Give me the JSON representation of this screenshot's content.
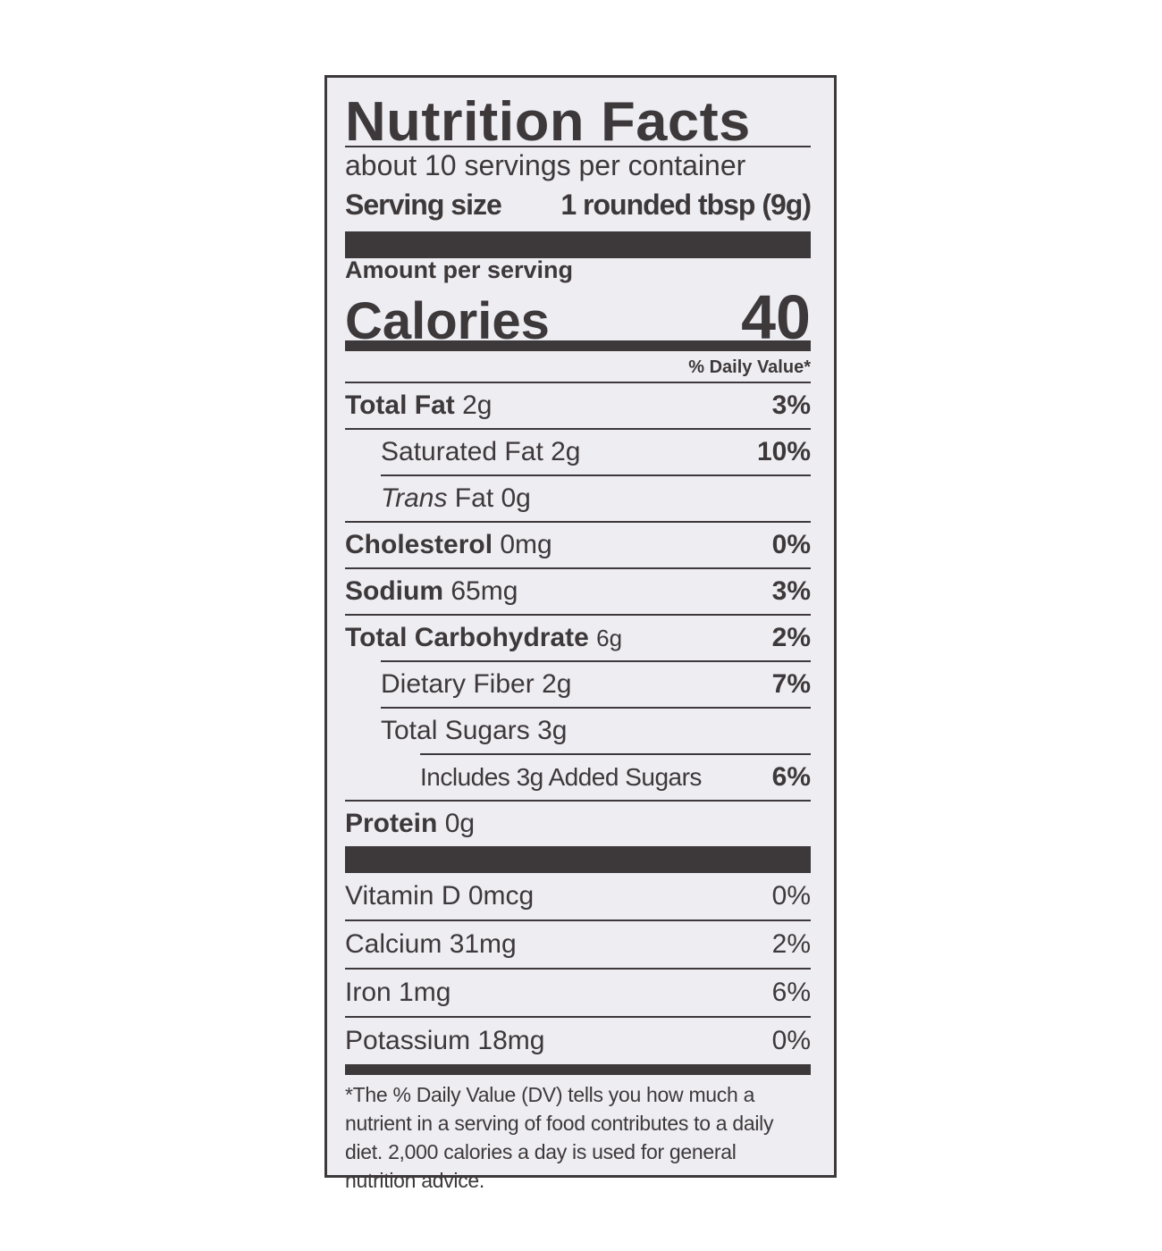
{
  "title": "Nutrition Facts",
  "servings_per_container": "about 10 servings per container",
  "serving_size_label": "Serving size",
  "serving_size_value": "1 rounded tbsp (9g)",
  "amount_per_serving": "Amount per serving",
  "calories_label": "Calories",
  "calories_value": "40",
  "daily_value_header": "% Daily Value*",
  "nutrients": [
    {
      "name": "Total Fat",
      "amount": "2g",
      "dv": "3%"
    },
    {
      "name": "Saturated Fat",
      "amount": "2g",
      "dv": "10%"
    },
    {
      "name": "Trans",
      "name_suffix": " Fat",
      "amount": "0g",
      "dv": ""
    },
    {
      "name": "Cholesterol",
      "amount": "0mg",
      "dv": "0%"
    },
    {
      "name": "Sodium",
      "amount": "65mg",
      "dv": "3%"
    },
    {
      "name": "Total Carbohydrate",
      "amount": "6g",
      "dv": "2%"
    },
    {
      "name": "Dietary Fiber",
      "amount": "2g",
      "dv": "7%"
    },
    {
      "name": "Total Sugars",
      "amount": "3g",
      "dv": ""
    },
    {
      "name": "Includes 3g Added Sugars",
      "amount": "",
      "dv": "6%"
    },
    {
      "name": "Protein",
      "amount": "0g",
      "dv": ""
    }
  ],
  "vitamins": [
    {
      "name": "Vitamin D 0mcg",
      "dv": "0%"
    },
    {
      "name": "Calcium 31mg",
      "dv": "2%"
    },
    {
      "name": "Iron 1mg",
      "dv": "6%"
    },
    {
      "name": "Potassium 18mg",
      "dv": "0%"
    }
  ],
  "footnote": "*The % Daily Value (DV) tells you how much a nutrient in a serving of food contributes to a daily diet. 2,000 calories a day is used for general nutrition advice.",
  "colors": {
    "ink": "#3d393b",
    "background": "#eeedf2"
  }
}
